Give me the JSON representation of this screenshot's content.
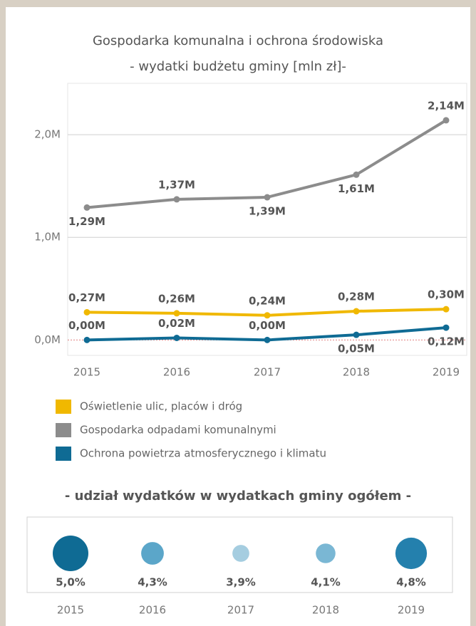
{
  "chart_data": [
    {
      "type": "line",
      "title": "Gospodarka komunalna i ochrona środowiska",
      "subtitle": "- wydatki budżetu gminy [mln zł]-",
      "categories": [
        "2015",
        "2016",
        "2017",
        "2018",
        "2019"
      ],
      "series": [
        {
          "name": "Oświetlenie ulic, placów i dróg",
          "color": "#f0b800",
          "values": [
            0.27,
            0.26,
            0.24,
            0.28,
            0.3
          ],
          "value_labels": [
            "0,27M",
            "0,26M",
            "0,24M",
            "0,28M",
            "0,30M"
          ]
        },
        {
          "name": "Gospodarka odpadami komunalnymi",
          "color": "#8c8c8c",
          "values": [
            1.29,
            1.37,
            1.39,
            1.61,
            2.14
          ],
          "value_labels": [
            "1,29M",
            "1,37M",
            "1,39M",
            "1,61M",
            "2,14M"
          ]
        },
        {
          "name": "Ochrona powietrza atmosferycznego i klimatu",
          "color": "#0f6b94",
          "values": [
            0.0,
            0.02,
            0.0,
            0.05,
            0.12
          ],
          "value_labels": [
            "0,00M",
            "0,02M",
            "0,00M",
            "0,05M",
            "0,12M"
          ]
        }
      ],
      "ylim": [
        -0.15,
        2.5
      ],
      "yticks": [
        {
          "value": 0,
          "label": "0,0M"
        },
        {
          "value": 1,
          "label": "1,0M"
        },
        {
          "value": 2,
          "label": "2,0M"
        }
      ],
      "grid": true
    },
    {
      "type": "bubble",
      "title": "- udział wydatków w wydatkach gminy ogółem -",
      "categories": [
        "2015",
        "2016",
        "2017",
        "2018",
        "2019"
      ],
      "values": [
        5.0,
        4.3,
        3.9,
        4.1,
        4.8
      ],
      "value_labels": [
        "5,0%",
        "4,3%",
        "3,9%",
        "4,1%",
        "4,8%"
      ],
      "colors": [
        "#0f6b94",
        "#5ba6c9",
        "#a5cde0",
        "#7ab7d4",
        "#2480ad"
      ]
    }
  ]
}
